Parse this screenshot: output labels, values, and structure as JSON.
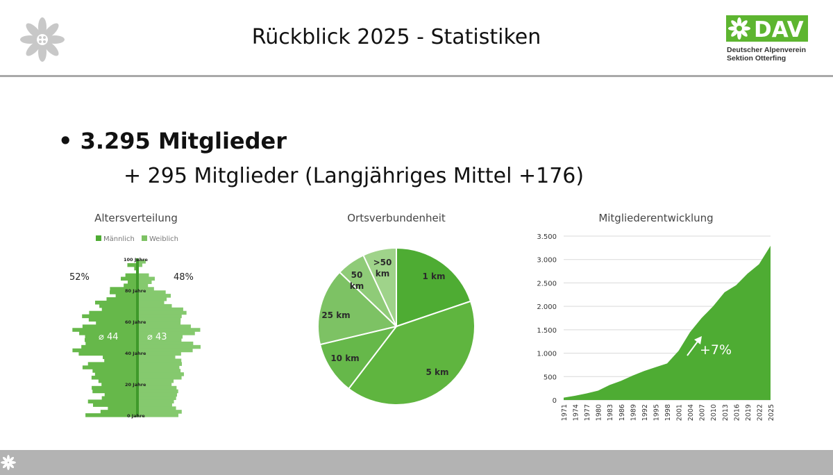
{
  "header": {
    "title": "Rückblick 2025 - Statistiken",
    "logo": {
      "text": "DAV",
      "line1": "Deutscher Alpenverein",
      "line2": "Sektion Otterfing"
    }
  },
  "colors": {
    "dark_green": "#4eac33",
    "mid_green": "#66b84a",
    "light_green": "#7dc264",
    "pale_green": "#9fd38a",
    "logo_green": "#5db530",
    "rule_gray": "#a9a9a9",
    "footer_gray": "#b3b3b3"
  },
  "summary": {
    "bullet_symbol": "•",
    "members": "3.295 Mitglieder",
    "growth": "+ 295 Mitglieder (Langjähriges Mittel +176)"
  },
  "age_chart": {
    "title": "Altersverteilung",
    "legend": [
      "Männlich",
      "Weiblich"
    ],
    "male_pct": "52%",
    "female_pct": "48%",
    "male_avg": "⌀ 44",
    "female_avg": "⌀ 43",
    "axis_labels": [
      "100 Jahre",
      "80 Jahre",
      "60 Jahre",
      "40 Jahre",
      "20 Jahre",
      "0 Jahre"
    ]
  },
  "chart_data": [
    {
      "type": "pie",
      "title": "Ortsverbundenheit",
      "labels": [
        "1 km",
        "5 km",
        "10 km",
        "25 km",
        "50 km",
        ">50 km"
      ],
      "values": [
        20,
        41,
        11,
        16,
        6,
        7
      ]
    },
    {
      "type": "area",
      "title": "Mitgliederentwicklung",
      "x": [
        1971,
        1974,
        1977,
        1980,
        1983,
        1986,
        1989,
        1992,
        1995,
        1998,
        2001,
        2004,
        2007,
        2010,
        2013,
        2016,
        2019,
        2022,
        2025
      ],
      "y": [
        50,
        90,
        140,
        200,
        320,
        410,
        520,
        620,
        700,
        780,
        1050,
        1450,
        1750,
        2000,
        2300,
        2450,
        2700,
        2900,
        3295
      ],
      "ylim": [
        0,
        3500
      ],
      "yticks": [
        0,
        500,
        1000,
        1500,
        2000,
        2500,
        3000,
        3500
      ],
      "ytick_labels": [
        "0",
        "500",
        "1.000",
        "1.500",
        "2.000",
        "2.500",
        "3.000",
        "3.500"
      ],
      "annotation": "+7%",
      "grid": true
    }
  ]
}
